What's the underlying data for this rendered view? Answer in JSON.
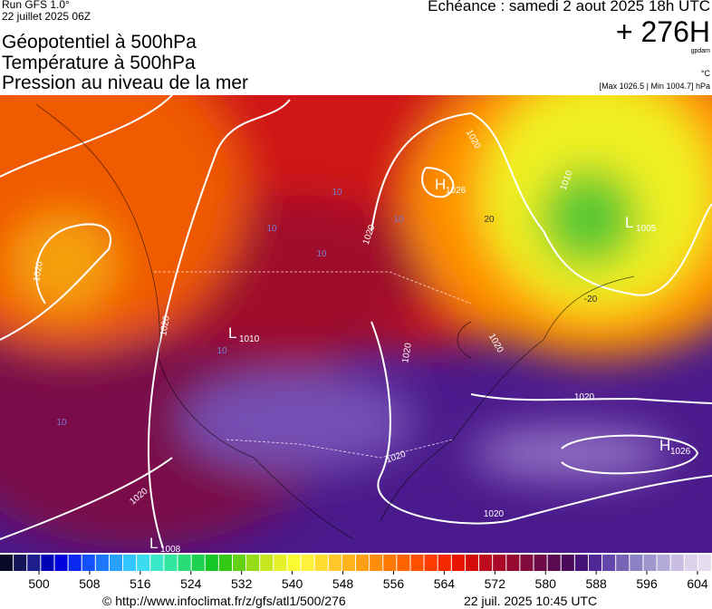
{
  "header": {
    "run": "Run GFS 1.0°",
    "run_date": "22 juillet 2025 06Z",
    "titles": [
      "Géopotentiel à 500hPa",
      "Température à 500hPa",
      "Pression au niveau de la mer"
    ],
    "echeance": "Echéance : samedi 2 aout 2025 18h UTC",
    "lead": "+ 276H",
    "unit": "gpdam",
    "temp_unit": "°C",
    "range": "[Max 1026.5 | Min 1004.7] hPa"
  },
  "map": {
    "centers": [
      {
        "letter": "H",
        "value": "1026"
      },
      {
        "letter": "L",
        "value": "1005"
      },
      {
        "letter": "L",
        "value": "1010"
      },
      {
        "letter": "H",
        "value": "1026"
      },
      {
        "letter": "L",
        "value": "1008"
      }
    ],
    "isobar_labels": [
      "1020",
      "1020",
      "1010",
      "1020",
      "1020",
      "1020",
      "1020",
      "1020",
      "1020",
      "1020",
      "1020"
    ],
    "isotherm_labels": [
      "10",
      "10",
      "10",
      "10",
      "10",
      "10",
      "-20",
      "20"
    ]
  },
  "colorbar": {
    "ticks": [
      500,
      508,
      516,
      524,
      532,
      540,
      548,
      556,
      564,
      572,
      580,
      588,
      596,
      604
    ],
    "colors": [
      "#0a0a28",
      "#14145a",
      "#1e1e8c",
      "#0000b4",
      "#0000dc",
      "#0a28f0",
      "#1450ff",
      "#1e78ff",
      "#28a0ff",
      "#32c8ff",
      "#3cdcf0",
      "#3ce6c8",
      "#32e6a0",
      "#28dc78",
      "#1ed250",
      "#14c828",
      "#32c814",
      "#64d214",
      "#96dc14",
      "#c8e61e",
      "#e6f028",
      "#fafa32",
      "#fff03c",
      "#ffdc32",
      "#ffc828",
      "#ffb41e",
      "#ffa014",
      "#ff8c0a",
      "#ff7800",
      "#ff6400",
      "#ff5000",
      "#ff3c00",
      "#f52800",
      "#e61400",
      "#d20a0a",
      "#be0a1e",
      "#aa0a28",
      "#960a32",
      "#820a3c",
      "#6e0a46",
      "#5a0a50",
      "#4b0a5a",
      "#461478",
      "#502896",
      "#6446aa",
      "#7864b4",
      "#8c82c3",
      "#a096cd",
      "#b4aad7",
      "#c8bee1",
      "#dcd2eb",
      "#e6dcf0"
    ]
  },
  "footer": {
    "url": "© http://www.infoclimat.fr/z/gfs/atl1/500/276",
    "timestamp": "22 juil. 2025 10:45 UTC"
  }
}
